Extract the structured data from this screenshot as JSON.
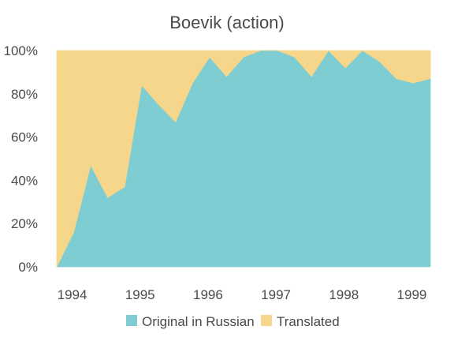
{
  "chart_data": {
    "type": "area",
    "stacked": true,
    "normalized": true,
    "title": "Boevik (action)",
    "xlabel": "",
    "ylabel": "",
    "xlim": [
      1993.75,
      1999.25
    ],
    "ylim": [
      0,
      100
    ],
    "x_ticks": [
      "1994",
      "1995",
      "1996",
      "1997",
      "1998",
      "1999"
    ],
    "y_ticks": [
      "0%",
      "20%",
      "40%",
      "60%",
      "80%",
      "100%"
    ],
    "grid": false,
    "legend_position": "bottom",
    "x": [
      1993.75,
      1994.0,
      1994.25,
      1994.5,
      1994.75,
      1995.0,
      1995.25,
      1995.5,
      1995.75,
      1996.0,
      1996.25,
      1996.5,
      1996.75,
      1997.0,
      1997.25,
      1997.5,
      1997.75,
      1998.0,
      1998.25,
      1998.5,
      1998.75,
      1999.0,
      1999.25
    ],
    "series": [
      {
        "name": "Original in Russian",
        "color": "#7ecdd3",
        "values": [
          0,
          16,
          47,
          32,
          37,
          84,
          75,
          67,
          85,
          97,
          88,
          97,
          100,
          100,
          97,
          88,
          100,
          92,
          100,
          95,
          87,
          85,
          87
        ]
      },
      {
        "name": "Translated",
        "color": "#f5d68a",
        "values": [
          100,
          84,
          53,
          68,
          63,
          16,
          25,
          33,
          15,
          3,
          12,
          3,
          0,
          0,
          3,
          12,
          0,
          8,
          0,
          5,
          13,
          15,
          13
        ]
      }
    ]
  }
}
